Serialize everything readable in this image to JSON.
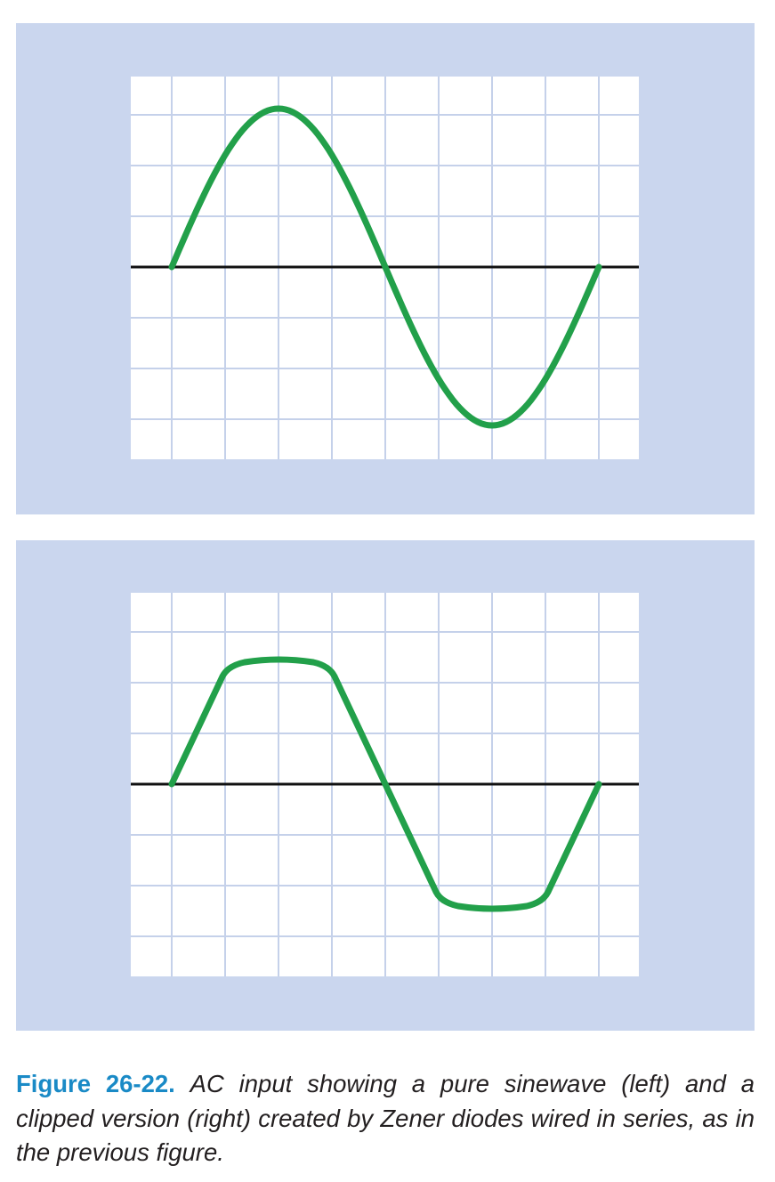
{
  "caption": {
    "label": "Figure 26-22.",
    "text": "AC input showing a pure sinewave (left) and a clipped version (right) created by Zener diodes wired in series, as in the previous figure."
  }
}
